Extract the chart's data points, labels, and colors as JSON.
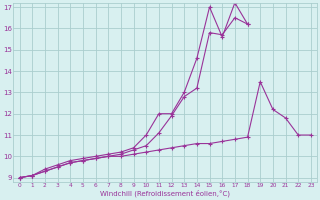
{
  "xlabel": "Windchill (Refroidissement éolien,°C)",
  "x": [
    0,
    1,
    2,
    3,
    4,
    5,
    6,
    7,
    8,
    9,
    10,
    11,
    12,
    13,
    14,
    15,
    16,
    17,
    18,
    19,
    20,
    21,
    22,
    23
  ],
  "line1": [
    9.0,
    9.1,
    9.4,
    9.6,
    9.8,
    9.9,
    10.0,
    10.1,
    10.2,
    10.4,
    11.0,
    12.0,
    12.0,
    13.0,
    14.6,
    17.0,
    15.6,
    17.2,
    16.2,
    null,
    null,
    null,
    null,
    null
  ],
  "line2": [
    9.0,
    9.1,
    9.3,
    9.5,
    9.7,
    9.8,
    9.9,
    10.0,
    10.1,
    10.3,
    10.5,
    11.1,
    11.9,
    12.8,
    13.2,
    15.8,
    15.7,
    16.5,
    16.2,
    null,
    null,
    null,
    null,
    null
  ],
  "line3": [
    9.0,
    9.1,
    9.3,
    9.5,
    9.7,
    9.8,
    9.9,
    10.0,
    10.0,
    10.1,
    10.2,
    10.3,
    10.4,
    10.5,
    10.6,
    10.6,
    10.7,
    10.8,
    10.9,
    13.5,
    12.2,
    11.8,
    11.0,
    11.0
  ],
  "bg_color": "#d8f0f0",
  "grid_color": "#aacece",
  "line_color": "#993399",
  "ylim": [
    9,
    17
  ],
  "xlim": [
    -0.5,
    23.5
  ],
  "yticks": [
    9,
    10,
    11,
    12,
    13,
    14,
    15,
    16,
    17
  ],
  "xticks": [
    0,
    1,
    2,
    3,
    4,
    5,
    6,
    7,
    8,
    9,
    10,
    11,
    12,
    13,
    14,
    15,
    16,
    17,
    18,
    19,
    20,
    21,
    22,
    23
  ]
}
